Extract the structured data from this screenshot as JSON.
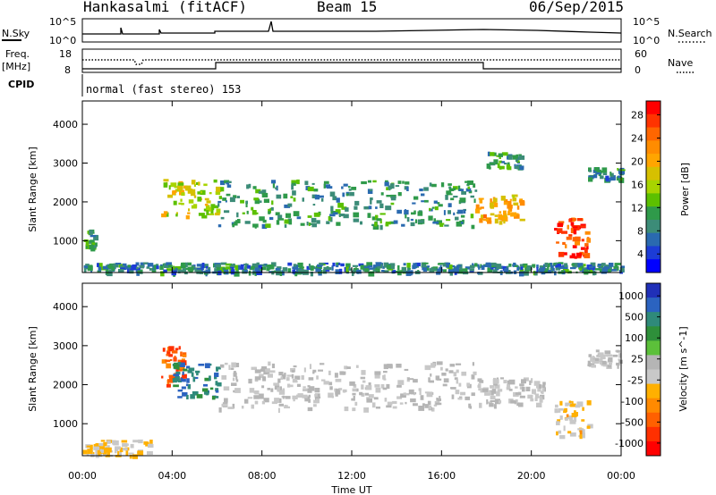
{
  "header": {
    "station": "Hankasalmi (fitACF)",
    "beam": "Beam 15",
    "date": "06/Sep/2015"
  },
  "noise_panel": {
    "left_label": "N.Sky",
    "right_label": "N.Search",
    "left_ticks": [
      "10^5",
      "10^0"
    ],
    "right_ticks": [
      "10^5",
      "10^0"
    ]
  },
  "freq_panel": {
    "left_label_1": "Freq.",
    "left_label_2": "[MHz]",
    "left_ticks": [
      "18",
      "8"
    ],
    "right_label": "Nave",
    "right_ticks": [
      "60",
      "0"
    ]
  },
  "cpid_panel": {
    "label": "CPID",
    "mode": "normal (fast stereo) 153"
  },
  "x_axis": {
    "ticks": [
      "00:00",
      "04:00",
      "08:00",
      "12:00",
      "16:00",
      "20:00",
      "00:00"
    ],
    "title": "Time UT"
  },
  "power_panel": {
    "ylabel": "Slant Range [km]",
    "yticks": [
      "4000",
      "3000",
      "2000",
      "1000"
    ],
    "colorbar_label": "Power [dB]",
    "colorbar_ticks": [
      "28",
      "24",
      "20",
      "16",
      "12",
      "8",
      "4"
    ],
    "colorbar_colors": [
      "#ff0000",
      "#ff3300",
      "#ff6600",
      "#ff8c00",
      "#ffa500",
      "#d6c000",
      "#a8d400",
      "#5cc000",
      "#2f9a4a",
      "#3c8c78",
      "#2a6ab0",
      "#1c3cd6",
      "#0000ff"
    ]
  },
  "velocity_panel": {
    "ylabel": "Slant Range [km]",
    "yticks": [
      "4000",
      "3000",
      "2000",
      "1000"
    ],
    "colorbar_label": "Velocity [m s^-1]",
    "colorbar_ticks": [
      "1000",
      "500",
      "100",
      "25",
      "-25",
      "-100",
      "-500",
      "-1000"
    ],
    "colorbar_colors": [
      "#2030b8",
      "#2b63c0",
      "#2f8a7a",
      "#2e8f3a",
      "#5cc03a",
      "#b5b5b5",
      "#c8c8c8",
      "#ffb000",
      "#ff8a00",
      "#ff6000",
      "#ff3000",
      "#ff0000"
    ]
  },
  "chart_data": [
    {
      "type": "heatmap",
      "title": "Power",
      "xlabel": "Time UT",
      "ylabel": "Slant Range [km]",
      "xlim_hours": [
        0,
        24
      ],
      "ylim_km": [
        180,
        4600
      ],
      "colorbar": "Power [dB]",
      "colorbar_range": [
        0,
        30
      ],
      "echo_regions": [
        {
          "t0": 0.0,
          "t1": 0.6,
          "r0": 800,
          "r1": 1300,
          "value": 10
        },
        {
          "t0": 3.5,
          "t1": 6.0,
          "r0": 1600,
          "r1": 2600,
          "value": 16
        },
        {
          "t0": 6.0,
          "t1": 17.5,
          "r0": 1400,
          "r1": 2600,
          "value": 9
        },
        {
          "t0": 17.5,
          "t1": 19.5,
          "r0": 1500,
          "r1": 2200,
          "value": 20
        },
        {
          "t0": 18.0,
          "t1": 19.5,
          "r0": 2900,
          "r1": 3300,
          "value": 9
        },
        {
          "t0": 21.0,
          "t1": 22.5,
          "r0": 600,
          "r1": 1600,
          "value": 26
        },
        {
          "t0": 22.5,
          "t1": 24.0,
          "r0": 2600,
          "r1": 2900,
          "value": 8
        },
        {
          "t0": 0.0,
          "t1": 24.0,
          "r0": 200,
          "r1": 450,
          "value": 8
        }
      ]
    },
    {
      "type": "heatmap",
      "title": "Velocity",
      "xlabel": "Time UT",
      "ylabel": "Slant Range [km]",
      "xlim_hours": [
        0,
        24
      ],
      "ylim_km": [
        180,
        4600
      ],
      "colorbar": "Velocity [m s^-1]",
      "colorbar_range": [
        -1000,
        1000
      ],
      "echo_regions": [
        {
          "t0": 0.0,
          "t1": 3.0,
          "r0": 200,
          "r1": 600,
          "value": -150
        },
        {
          "t0": 3.5,
          "t1": 4.5,
          "r0": 2000,
          "r1": 3000,
          "value": -600
        },
        {
          "t0": 4.0,
          "t1": 6.0,
          "r0": 1700,
          "r1": 2600,
          "value": 600
        },
        {
          "t0": 6.0,
          "t1": 17.5,
          "r0": 1400,
          "r1": 2600,
          "value": 0
        },
        {
          "t0": 17.5,
          "t1": 20.5,
          "r0": 1500,
          "r1": 2200,
          "value": 0
        },
        {
          "t0": 21.0,
          "t1": 22.5,
          "r0": 700,
          "r1": 1600,
          "value": -200
        },
        {
          "t0": 22.5,
          "t1": 24.0,
          "r0": 2500,
          "r1": 2900,
          "value": 0
        }
      ]
    }
  ]
}
